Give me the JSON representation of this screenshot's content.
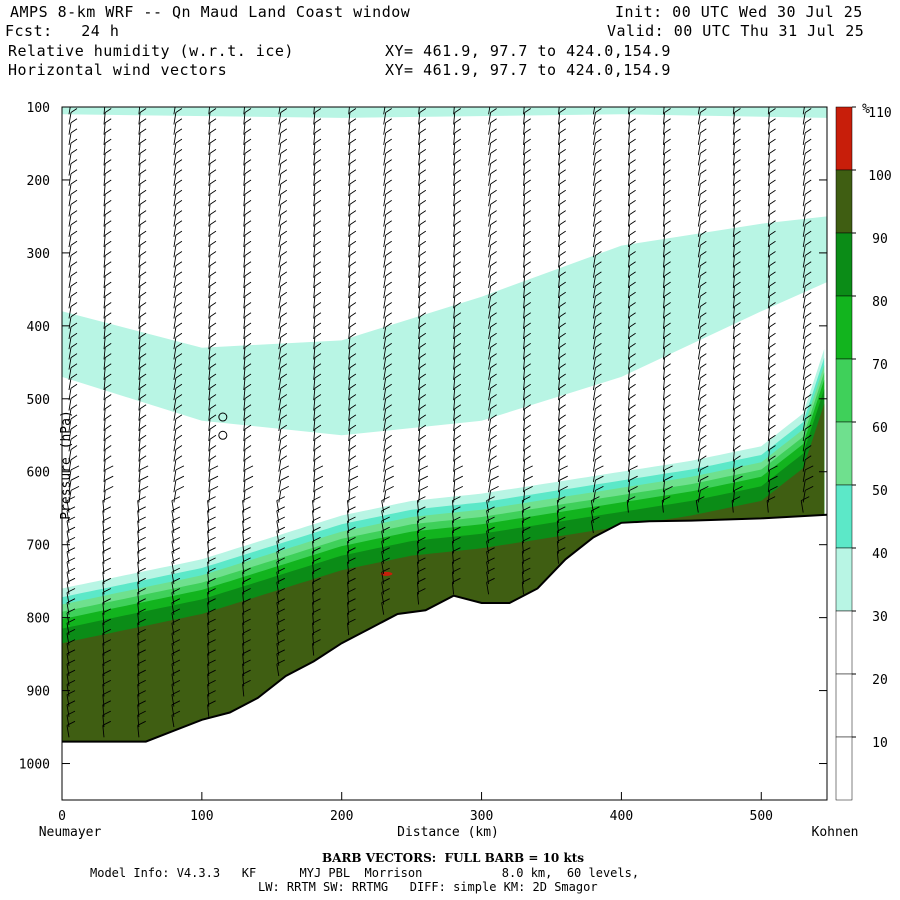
{
  "header": {
    "title": "AMPS 8-km WRF -- Qn Maud Land Coast window",
    "init": "Init: 00 UTC Wed 30 Jul 25",
    "fcst": "Fcst:   24 h",
    "valid": "Valid: 00 UTC Thu 31 Jul 25",
    "field1": "Relative humidity (w.r.t. ice)",
    "field1_xy": "XY= 461.9, 97.7 to 424.0,154.9",
    "field2": "Horizontal wind vectors",
    "field2_xy": "XY= 461.9, 97.7 to 424.0,154.9"
  },
  "footer": {
    "barb": "BARB VECTORS:  FULL BARB = 10 kts",
    "model1": "Model Info: V4.3.3   KF      MYJ PBL  Morrison           8.0 km,  60 levels,",
    "model2": "LW: RRTM SW: RRTMG   DIFF: simple KM: 2D Smagor"
  },
  "colors": {
    "rh_levels": [
      "#ffffff",
      "#ffffff",
      "#ffffff",
      "#b8f5e4",
      "#5ce8c8",
      "#6fe08e",
      "#3fd05a",
      "#12b41e",
      "#0b8c17",
      "#3f5e12",
      "#c81e0a"
    ],
    "terrain_line": "#000000"
  },
  "chart_data": {
    "type": "cross-section",
    "xlabel": "Distance (km)",
    "ylabel": "Pressure (hPa)",
    "x_left_label": "Neumayer",
    "x_right_label": "Kohnen",
    "xlim": [
      0,
      547
    ],
    "ylim": [
      1050,
      100
    ],
    "x_ticks": [
      "0",
      "100",
      "200",
      "300",
      "400",
      "500"
    ],
    "y_ticks": [
      "100",
      "200",
      "300",
      "400",
      "500",
      "600",
      "700",
      "800",
      "900",
      "1000"
    ],
    "colorbar_unit": "%",
    "colorbar_levels": [
      10,
      20,
      30,
      40,
      50,
      60,
      70,
      80,
      90,
      100,
      110
    ],
    "colorbar_labels": [
      "10",
      "20",
      "30",
      "40",
      "50",
      "60",
      "70",
      "80",
      "90",
      "100",
      "110"
    ],
    "terrain_hpa": [
      [
        0,
        970
      ],
      [
        30,
        970
      ],
      [
        60,
        970
      ],
      [
        80,
        955
      ],
      [
        100,
        940
      ],
      [
        120,
        930
      ],
      [
        140,
        910
      ],
      [
        160,
        880
      ],
      [
        180,
        860
      ],
      [
        200,
        835
      ],
      [
        220,
        815
      ],
      [
        240,
        795
      ],
      [
        260,
        790
      ],
      [
        280,
        770
      ],
      [
        300,
        780
      ],
      [
        320,
        780
      ],
      [
        340,
        760
      ],
      [
        360,
        720
      ],
      [
        380,
        690
      ],
      [
        400,
        670
      ],
      [
        420,
        668
      ],
      [
        450,
        667
      ],
      [
        500,
        664
      ],
      [
        547,
        659
      ]
    ],
    "moist_layer_top_hpa": [
      [
        0,
        760
      ],
      [
        50,
        740
      ],
      [
        100,
        720
      ],
      [
        150,
        690
      ],
      [
        200,
        660
      ],
      [
        250,
        640
      ],
      [
        300,
        630
      ],
      [
        350,
        615
      ],
      [
        400,
        600
      ],
      [
        450,
        585
      ],
      [
        500,
        565
      ],
      [
        530,
        520
      ],
      [
        547,
        420
      ]
    ],
    "upper_moist_band": {
      "top_hpa": [
        [
          0,
          380
        ],
        [
          100,
          430
        ],
        [
          200,
          420
        ],
        [
          300,
          360
        ],
        [
          400,
          290
        ],
        [
          500,
          260
        ],
        [
          547,
          250
        ]
      ],
      "bottom_hpa": [
        [
          0,
          470
        ],
        [
          100,
          530
        ],
        [
          200,
          550
        ],
        [
          300,
          530
        ],
        [
          400,
          470
        ],
        [
          500,
          380
        ],
        [
          547,
          340
        ]
      ]
    },
    "barb_columns_km": [
      5,
      30,
      55,
      80,
      105,
      130,
      155,
      180,
      205,
      230,
      255,
      280,
      305,
      330,
      355,
      380,
      405,
      430,
      455,
      480,
      505,
      530
    ]
  }
}
